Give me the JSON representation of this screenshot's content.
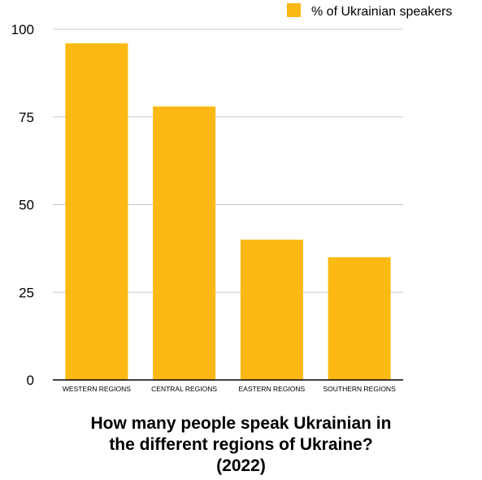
{
  "chart_data": {
    "type": "bar",
    "categories": [
      "WESTERN REGIONS",
      "CENTRAL REGIONS",
      "EASTERN REGIONS",
      "SOUTHERN REGIONS"
    ],
    "series": [
      {
        "name": "% of Ukrainian speakers",
        "values": [
          96,
          78,
          40,
          35
        ],
        "color": "#fdb913"
      }
    ],
    "title_lines": [
      "How many people speak Ukrainian in",
      "the different regions of Ukraine?",
      "(2022)"
    ],
    "xlabel": "",
    "ylabel": "",
    "ylim": [
      0,
      100
    ],
    "yticks": [
      "0",
      "25",
      "50",
      "75",
      "100"
    ],
    "grid": true,
    "legend_position": "top-right",
    "colors": {
      "bar": "#fdb913",
      "grid": "#c8c8c8",
      "axis": "#000000",
      "text": "#000000"
    }
  }
}
